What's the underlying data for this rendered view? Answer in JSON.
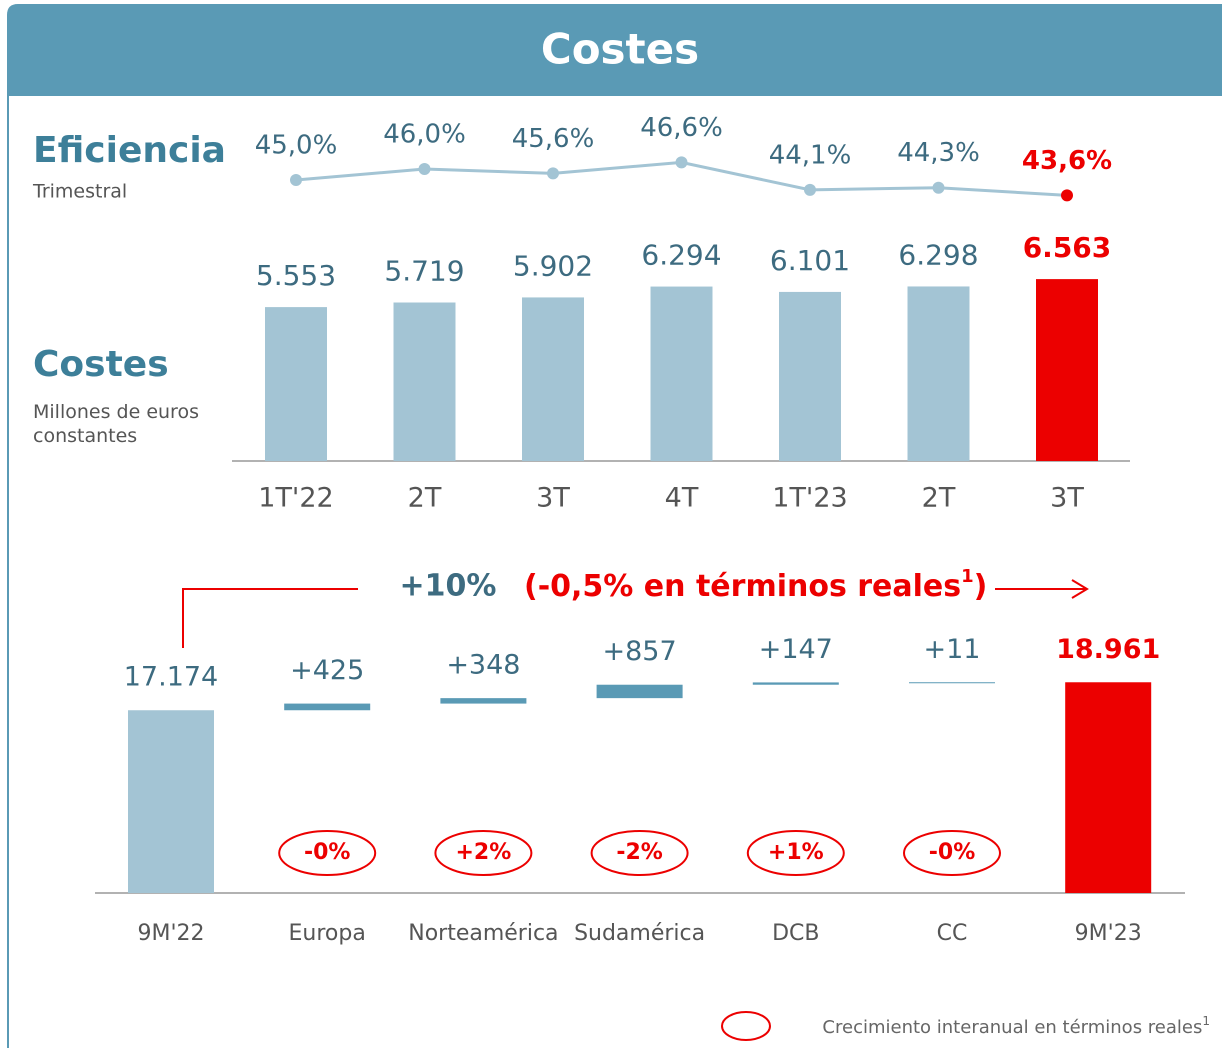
{
  "header": {
    "title": "Costes"
  },
  "chart_data": [
    {
      "type": "line",
      "title": "Eficiencia",
      "subtitle": "Trimestral",
      "values": [
        45.0,
        46.0,
        45.6,
        46.6,
        44.1,
        44.3,
        43.6
      ],
      "value_labels": [
        "45,0%",
        "46,0%",
        "45,6%",
        "46,6%",
        "44,1%",
        "44,3%",
        "43,6%"
      ],
      "color": "#a3c4d4",
      "point_colors": [
        "#a3c4d4",
        "#a3c4d4",
        "#a3c4d4",
        "#a3c4d4",
        "#a3c4d4",
        "#a3c4d4",
        "#ec0000"
      ],
      "ylim": [
        40,
        50
      ]
    },
    {
      "type": "bar",
      "title": "Costes",
      "subtitle": "Millones de euros constantes",
      "categories": [
        "1T'22",
        "2T",
        "3T",
        "4T",
        "1T'23",
        "2T",
        "3T"
      ],
      "values": [
        5553,
        5719,
        5902,
        6294,
        6101,
        6298,
        6563
      ],
      "value_labels": [
        "5.553",
        "5.719",
        "5.902",
        "6.294",
        "6.101",
        "6.298",
        "6.563"
      ],
      "colors": [
        "#a3c4d4",
        "#a3c4d4",
        "#a3c4d4",
        "#a3c4d4",
        "#a3c4d4",
        "#a3c4d4",
        "#ec0000"
      ],
      "ylim": [
        0,
        7000
      ]
    },
    {
      "type": "waterfall",
      "annotation": [
        "+10%",
        "(-0,5% en términos reales",
        "1",
        ")"
      ],
      "categories": [
        "9M'22",
        "Europa",
        "Norteamérica",
        "Sudamérica",
        "DCB",
        "CC",
        "9M'23"
      ],
      "values": [
        17174,
        425,
        348,
        857,
        147,
        11,
        18961
      ],
      "value_labels": [
        "17.174",
        "+425",
        "+348",
        "+857",
        "+147",
        "+11",
        "18.961"
      ],
      "real_growth": [
        null,
        "-0%",
        "+2%",
        "-2%",
        "+1%",
        "-0%",
        null
      ],
      "colors": [
        "#a3c4d4",
        "#5a9ab5",
        "#5a9ab5",
        "#5a9ab5",
        "#5a9ab5",
        "#5a9ab5",
        "#ec0000"
      ],
      "ylim": [
        5500,
        20000
      ],
      "legend_text": "Crecimiento interanual en términos reales",
      "legend_note": "1"
    }
  ]
}
